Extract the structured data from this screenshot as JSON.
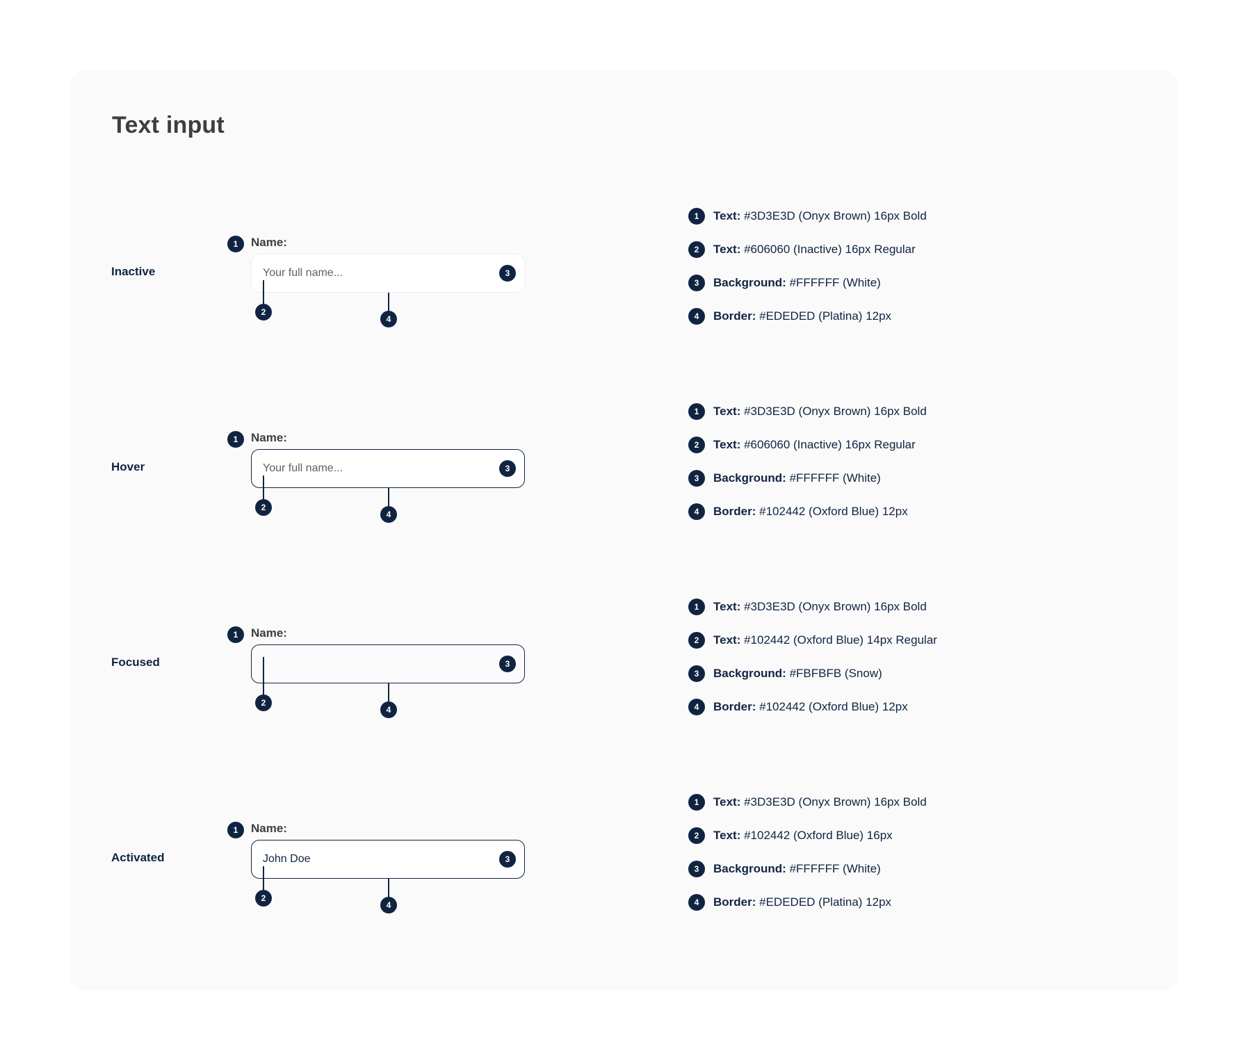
{
  "title": "Text input",
  "states": [
    {
      "label": "Inactive",
      "field_label": "Name:",
      "input_text": "Your full name...",
      "specs": [
        {
          "n": "1",
          "key": "Text:",
          "value": "#3D3E3D (Onyx Brown) 16px Bold"
        },
        {
          "n": "2",
          "key": "Text:",
          "value": "#606060 (Inactive) 16px Regular"
        },
        {
          "n": "3",
          "key": "Background:",
          "value": "#FFFFFF (White)"
        },
        {
          "n": "4",
          "key": "Border:",
          "value": "#EDEDED (Platina) 12px"
        }
      ]
    },
    {
      "label": "Hover",
      "field_label": "Name:",
      "input_text": "Your full name...",
      "specs": [
        {
          "n": "1",
          "key": "Text:",
          "value": "#3D3E3D (Onyx Brown) 16px Bold"
        },
        {
          "n": "2",
          "key": "Text:",
          "value": "#606060 (Inactive) 16px Regular"
        },
        {
          "n": "3",
          "key": "Background:",
          "value": "#FFFFFF (White)"
        },
        {
          "n": "4",
          "key": "Border:",
          "value": "#102442 (Oxford Blue) 12px"
        }
      ]
    },
    {
      "label": "Focused",
      "field_label": "Name:",
      "input_text": "",
      "specs": [
        {
          "n": "1",
          "key": "Text:",
          "value": "#3D3E3D (Onyx Brown) 16px Bold"
        },
        {
          "n": "2",
          "key": "Text:",
          "value": "#102442 (Oxford Blue) 14px Regular"
        },
        {
          "n": "3",
          "key": "Background:",
          "value": "#FBFBFB (Snow)"
        },
        {
          "n": "4",
          "key": "Border:",
          "value": "#102442 (Oxford Blue) 12px"
        }
      ]
    },
    {
      "label": "Activated",
      "field_label": "Name:",
      "input_text": "John Doe",
      "specs": [
        {
          "n": "1",
          "key": "Text:",
          "value": "#3D3E3D (Onyx Brown) 16px Bold"
        },
        {
          "n": "2",
          "key": "Text:",
          "value": "#102442 (Oxford Blue) 16px"
        },
        {
          "n": "3",
          "key": "Background:",
          "value": "#FFFFFF (White)"
        },
        {
          "n": "4",
          "key": "Border:",
          "value": "#EDEDED (Platina) 12px"
        }
      ]
    }
  ],
  "badge_labels": {
    "one": "1",
    "two": "2",
    "three": "3",
    "four": "4"
  },
  "colors": {
    "oxford_blue": "#102442",
    "onyx_brown": "#3D3E3D",
    "inactive": "#606060",
    "platina": "#EDEDED",
    "snow": "#FBFBFB",
    "white": "#FFFFFF"
  }
}
